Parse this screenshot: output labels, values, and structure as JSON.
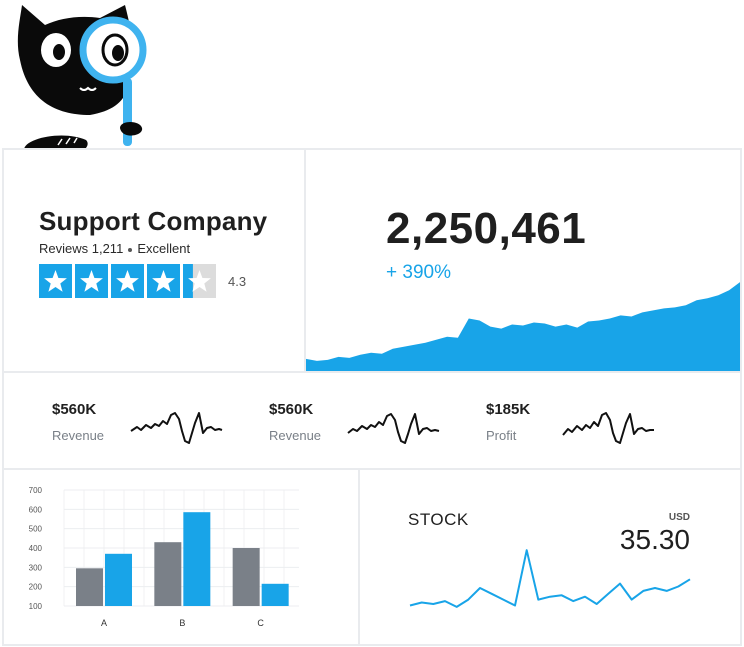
{
  "review": {
    "company": "Support Company",
    "reviews_label": "Reviews 1,211",
    "quality": "Excellent",
    "rating": 4.3,
    "rating_text": "4.3",
    "star_color": "#18a4e8"
  },
  "growth": {
    "total": "2,250,461",
    "change": "+ 390%",
    "accent": "#18a4e8"
  },
  "kpis": [
    {
      "value": "$560K",
      "label": "Revenue"
    },
    {
      "value": "$560K",
      "label": "Revenue"
    },
    {
      "value": "$185K",
      "label": "Profit"
    }
  ],
  "stock": {
    "title": "STOCK",
    "currency": "USD",
    "price": "35.30"
  },
  "chart_data": [
    {
      "type": "area",
      "x": [
        0,
        1,
        2,
        3,
        4,
        5,
        6,
        7,
        8,
        9,
        10,
        11,
        12,
        13,
        14,
        15,
        16,
        17,
        18,
        19,
        20,
        21,
        22,
        23,
        24,
        25,
        26,
        27,
        28,
        29,
        30,
        31,
        32,
        33,
        34,
        35,
        36,
        37,
        38,
        39,
        40
      ],
      "values": [
        12,
        10,
        11,
        14,
        13,
        16,
        18,
        17,
        22,
        24,
        26,
        28,
        31,
        34,
        33,
        52,
        50,
        44,
        42,
        46,
        45,
        48,
        47,
        44,
        46,
        43,
        49,
        50,
        52,
        55,
        54,
        58,
        60,
        62,
        63,
        65,
        70,
        72,
        75,
        80,
        88
      ],
      "ylim": [
        0,
        100
      ]
    },
    {
      "type": "bar",
      "categories": [
        "A",
        "B",
        "C"
      ],
      "series": [
        {
          "values": [
            295,
            430,
            400
          ]
        },
        {
          "values": [
            370,
            585,
            215
          ]
        }
      ],
      "yticks": [
        100,
        200,
        300,
        400,
        500,
        600,
        700
      ],
      "ylim": [
        100,
        700
      ],
      "colors": [
        "#7a8088",
        "#18a4e8"
      ]
    },
    {
      "type": "line",
      "x": [
        0,
        1,
        2,
        3,
        4,
        5,
        6,
        7,
        8,
        9,
        10,
        11,
        12,
        13,
        14,
        15,
        16,
        17,
        18,
        19,
        20,
        21,
        22,
        23,
        24
      ],
      "values": [
        10,
        12,
        11,
        13,
        9,
        14,
        22,
        18,
        14,
        10,
        48,
        14,
        16,
        17,
        13,
        16,
        11,
        18,
        25,
        14,
        20,
        22,
        20,
        23,
        28
      ],
      "ylim": [
        0,
        55
      ],
      "color": "#18a4e8"
    }
  ]
}
